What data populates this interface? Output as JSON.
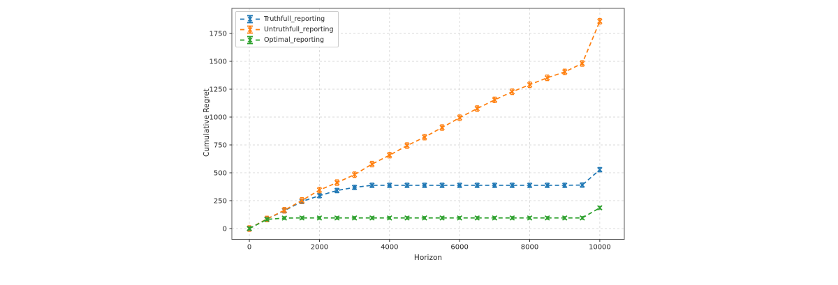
{
  "chart_data": {
    "type": "line",
    "title": "",
    "xlabel": "Horizon",
    "ylabel": "Cumulative Regret",
    "xlim": [
      -500,
      10700
    ],
    "ylim": [
      -97,
      1975
    ],
    "x_ticks": [
      0,
      2000,
      4000,
      6000,
      8000,
      10000
    ],
    "y_ticks": [
      0,
      250,
      500,
      750,
      1000,
      1250,
      1500,
      1750
    ],
    "grid": true,
    "grid_color": "#d9d9d9",
    "line_style": "dashed",
    "marker": "x-with-errorbar-caps",
    "legend_position": "upper-left",
    "x": [
      0,
      500,
      1000,
      1500,
      2000,
      2500,
      3000,
      3500,
      4000,
      4500,
      5000,
      5500,
      6000,
      6500,
      7000,
      7500,
      8000,
      8500,
      9000,
      9500,
      10000
    ],
    "series": [
      {
        "name": "Truthfull_reporting",
        "color": "#1f77b4",
        "yerr": 20,
        "values": [
          0,
          85,
          160,
          243,
          295,
          341,
          369,
          388,
          388,
          388,
          388,
          388,
          388,
          388,
          388,
          388,
          388,
          388,
          388,
          390,
          528
        ]
      },
      {
        "name": "Untruthfull_reporting",
        "color": "#ff7f0e",
        "yerr": 25,
        "values": [
          0,
          86,
          164,
          252,
          345,
          412,
          483,
          578,
          658,
          744,
          820,
          906,
          994,
          1076,
          1154,
          1227,
          1290,
          1352,
          1405,
          1481,
          1859
        ]
      },
      {
        "name": "Optimal_reporting",
        "color": "#2ca02c",
        "yerr": 12,
        "values": [
          0,
          82,
          94,
          95,
          95,
          95,
          95,
          95,
          95,
          95,
          95,
          95,
          95,
          95,
          95,
          95,
          95,
          95,
          95,
          95,
          186
        ]
      }
    ]
  }
}
